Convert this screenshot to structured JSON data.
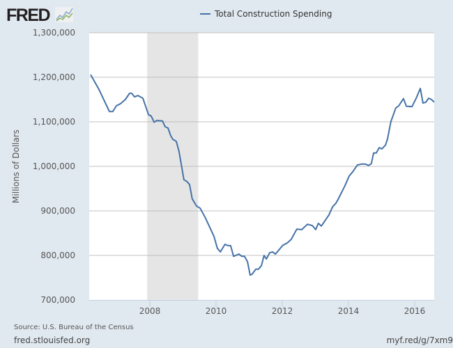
{
  "header": {
    "logo_text": "FRED",
    "logo_icon": "line-chart-icon"
  },
  "footer": {
    "source": "Source: U.S. Bureau of the Census",
    "site": "fred.stlouisfed.org",
    "short_url": "myf.red/g/7xm9"
  },
  "chart_data": {
    "type": "line",
    "title": "",
    "xlabel": "",
    "ylabel": "Millions of Dollars",
    "xlim": [
      2006.21,
      2016.59
    ],
    "ylim": [
      700000,
      1300000
    ],
    "grid": true,
    "legend_position": "top-center",
    "line_color": "#4572a7",
    "recession_color": "#e5e5e5",
    "recessions": [
      [
        2007.92,
        2009.46
      ]
    ],
    "x_ticks": [
      "2008",
      "2010",
      "2012",
      "2014",
      "2016"
    ],
    "y_ticks": [
      "700,000",
      "800,000",
      "900,000",
      "1,000,000",
      "1,100,000",
      "1,200,000",
      "1,300,000"
    ],
    "series": [
      {
        "name": "Total Construction Spending",
        "points": [
          [
            2006.21,
            1206000
          ],
          [
            2006.46,
            1173000
          ],
          [
            2006.78,
            1123000
          ],
          [
            2006.88,
            1123000
          ],
          [
            2006.99,
            1136000
          ],
          [
            2007.12,
            1141000
          ],
          [
            2007.26,
            1150000
          ],
          [
            2007.39,
            1164000
          ],
          [
            2007.45,
            1164000
          ],
          [
            2007.54,
            1156000
          ],
          [
            2007.64,
            1159000
          ],
          [
            2007.79,
            1153000
          ],
          [
            2007.96,
            1116000
          ],
          [
            2008.04,
            1113000
          ],
          [
            2008.13,
            1099000
          ],
          [
            2008.21,
            1103000
          ],
          [
            2008.38,
            1102000
          ],
          [
            2008.46,
            1089000
          ],
          [
            2008.55,
            1086000
          ],
          [
            2008.63,
            1069000
          ],
          [
            2008.69,
            1061000
          ],
          [
            2008.8,
            1056000
          ],
          [
            2008.88,
            1034000
          ],
          [
            2009.03,
            970000
          ],
          [
            2009.12,
            966000
          ],
          [
            2009.2,
            959000
          ],
          [
            2009.28,
            927000
          ],
          [
            2009.41,
            911000
          ],
          [
            2009.52,
            906000
          ],
          [
            2009.68,
            884000
          ],
          [
            2009.94,
            842000
          ],
          [
            2010.04,
            816000
          ],
          [
            2010.13,
            808000
          ],
          [
            2010.27,
            825000
          ],
          [
            2010.36,
            822000
          ],
          [
            2010.44,
            822000
          ],
          [
            2010.53,
            798000
          ],
          [
            2010.69,
            803000
          ],
          [
            2010.78,
            798000
          ],
          [
            2010.86,
            798000
          ],
          [
            2010.95,
            786000
          ],
          [
            2011.03,
            756000
          ],
          [
            2011.09,
            758000
          ],
          [
            2011.2,
            769000
          ],
          [
            2011.28,
            769000
          ],
          [
            2011.37,
            777000
          ],
          [
            2011.45,
            800000
          ],
          [
            2011.52,
            792000
          ],
          [
            2011.62,
            806000
          ],
          [
            2011.71,
            808000
          ],
          [
            2011.79,
            803000
          ],
          [
            2011.85,
            808000
          ],
          [
            2012.02,
            823000
          ],
          [
            2012.15,
            828000
          ],
          [
            2012.27,
            836000
          ],
          [
            2012.44,
            859000
          ],
          [
            2012.59,
            858000
          ],
          [
            2012.76,
            870000
          ],
          [
            2012.91,
            867000
          ],
          [
            2013.01,
            858000
          ],
          [
            2013.09,
            872000
          ],
          [
            2013.18,
            866000
          ],
          [
            2013.31,
            880000
          ],
          [
            2013.41,
            891000
          ],
          [
            2013.52,
            909000
          ],
          [
            2013.62,
            917000
          ],
          [
            2013.68,
            925000
          ],
          [
            2013.89,
            956000
          ],
          [
            2014.02,
            978000
          ],
          [
            2014.13,
            988000
          ],
          [
            2014.27,
            1003000
          ],
          [
            2014.38,
            1005000
          ],
          [
            2014.51,
            1005000
          ],
          [
            2014.61,
            1002000
          ],
          [
            2014.69,
            1006000
          ],
          [
            2014.76,
            1030000
          ],
          [
            2014.84,
            1030000
          ],
          [
            2014.93,
            1042000
          ],
          [
            2015.01,
            1039000
          ],
          [
            2015.12,
            1048000
          ],
          [
            2015.18,
            1062000
          ],
          [
            2015.28,
            1100000
          ],
          [
            2015.43,
            1131000
          ],
          [
            2015.52,
            1136000
          ],
          [
            2015.66,
            1152000
          ],
          [
            2015.75,
            1135000
          ],
          [
            2015.92,
            1134000
          ],
          [
            2016.06,
            1155000
          ],
          [
            2016.17,
            1175000
          ],
          [
            2016.25,
            1142000
          ],
          [
            2016.34,
            1144000
          ],
          [
            2016.42,
            1153000
          ],
          [
            2016.51,
            1150000
          ],
          [
            2016.59,
            1144000
          ]
        ]
      }
    ]
  }
}
